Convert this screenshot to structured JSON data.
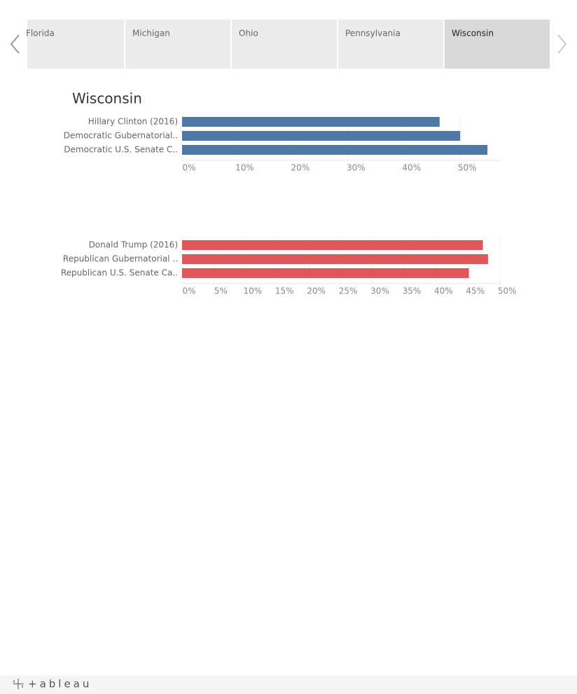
{
  "tabs": [
    "Florida",
    "Michigan",
    "Ohio",
    "Pennsylvania",
    "Wisconsin"
  ],
  "selected_tab": 4,
  "footer": {
    "logo": "+ableau"
  },
  "chart_data": [
    {
      "type": "bar",
      "orientation": "horizontal",
      "title": "Wisconsin",
      "categories": [
        "Hillary Clinton (2016)",
        "Democratic Gubernatorial..",
        "Democratic U.S. Senate C.."
      ],
      "values": [
        46.3,
        50.0,
        54.9
      ],
      "color": "#4e79a7",
      "xlim": [
        0,
        57.4
      ],
      "xticks": [
        {
          "value": 0,
          "label": "0%"
        },
        {
          "value": 10,
          "label": "10%"
        },
        {
          "value": 20,
          "label": "20%"
        },
        {
          "value": 30,
          "label": "30%"
        },
        {
          "value": 40,
          "label": "40%"
        },
        {
          "value": 50,
          "label": "50%"
        }
      ],
      "grid": true
    },
    {
      "type": "bar",
      "orientation": "horizontal",
      "categories": [
        "Donald Trump (2016)",
        "Republican Gubernatorial ..",
        "Republican U.S. Senate Ca.."
      ],
      "values": [
        47.3,
        48.1,
        45.1
      ],
      "color": "#e15759",
      "xlim": [
        0,
        50.2
      ],
      "xticks": [
        {
          "value": 0,
          "label": "0%"
        },
        {
          "value": 5,
          "label": "5%"
        },
        {
          "value": 10,
          "label": "10%"
        },
        {
          "value": 15,
          "label": "15%"
        },
        {
          "value": 20,
          "label": "20%"
        },
        {
          "value": 25,
          "label": "25%"
        },
        {
          "value": 30,
          "label": "30%"
        },
        {
          "value": 35,
          "label": "35%"
        },
        {
          "value": 40,
          "label": "40%"
        },
        {
          "value": 45,
          "label": "45%"
        },
        {
          "value": 50,
          "label": "50%"
        }
      ],
      "grid": true
    }
  ]
}
